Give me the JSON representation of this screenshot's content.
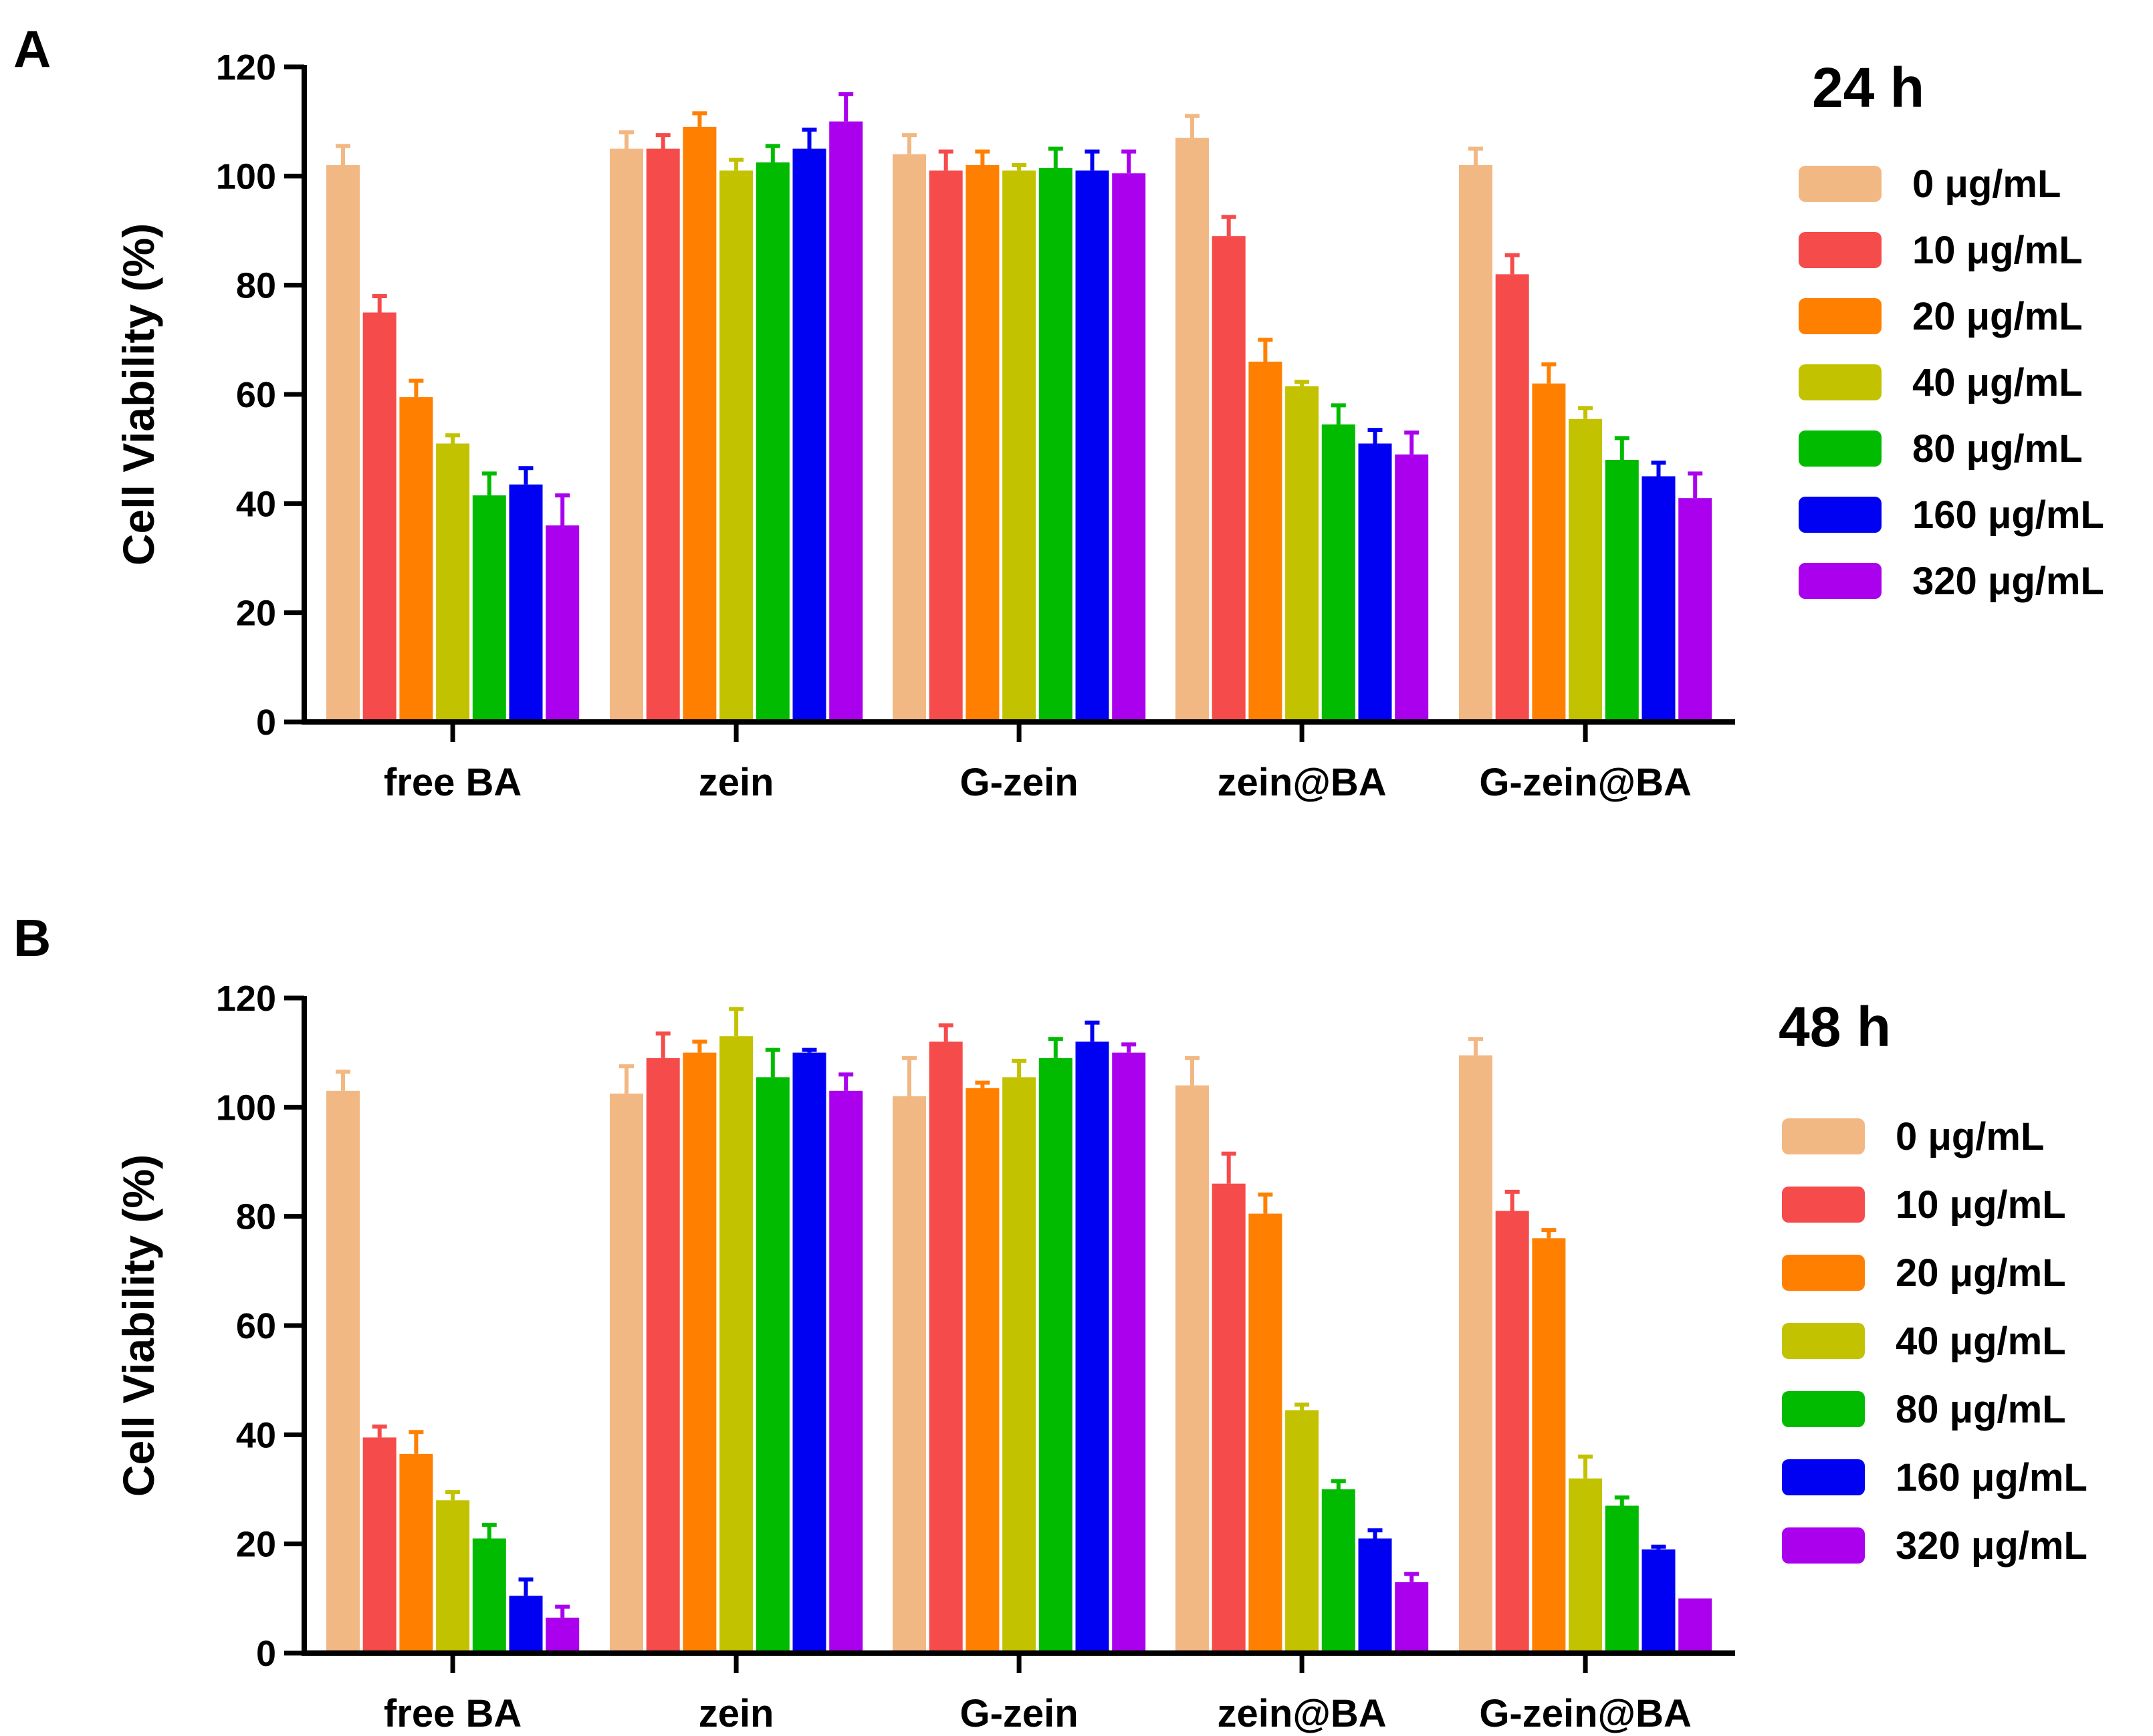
{
  "chart_data": [
    {
      "type": "bar",
      "panel_label": "A",
      "title": "24 h",
      "xlabel": "",
      "ylabel": "Cell Viability (%)",
      "ylim": [
        0,
        120
      ],
      "yticks": [
        "0",
        "20",
        "40",
        "60",
        "80",
        "100",
        "120"
      ],
      "categories": [
        "free BA",
        "zein",
        "G-zein",
        "zein@BA",
        "G-zein@BA"
      ],
      "legend_position": "right",
      "series": [
        {
          "name": "0 μg/mL",
          "color": "#F2B883",
          "values": [
            102,
            105,
            104,
            107,
            102
          ],
          "errors": [
            3.5,
            3,
            3.5,
            4,
            3
          ]
        },
        {
          "name": "10 μg/mL",
          "color": "#F54B4B",
          "values": [
            75,
            105,
            101,
            89,
            82
          ],
          "errors": [
            3,
            2.5,
            3.5,
            3.5,
            3.5
          ]
        },
        {
          "name": "20 μg/mL",
          "color": "#FF8000",
          "values": [
            59.5,
            109,
            102,
            66,
            62
          ],
          "errors": [
            3,
            2.5,
            2.5,
            4,
            3.5
          ]
        },
        {
          "name": "40 μg/mL",
          "color": "#C2C200",
          "values": [
            51,
            101,
            101,
            61.5,
            55.5
          ],
          "errors": [
            1.5,
            2,
            1,
            0.8,
            2
          ]
        },
        {
          "name": "80 μg/mL",
          "color": "#00BB00",
          "values": [
            41.5,
            102.5,
            101.5,
            54.5,
            48
          ],
          "errors": [
            4,
            3,
            3.5,
            3.5,
            4
          ]
        },
        {
          "name": "160 μg/mL",
          "color": "#0000F2",
          "values": [
            43.5,
            105,
            101,
            51,
            45
          ],
          "errors": [
            3,
            3.5,
            3.5,
            2.5,
            2.5
          ]
        },
        {
          "name": "320 μg/mL",
          "color": "#AA00EE",
          "values": [
            36,
            110,
            100.5,
            49,
            41
          ],
          "errors": [
            5.5,
            5,
            4,
            4,
            4.5
          ]
        }
      ]
    },
    {
      "type": "bar",
      "panel_label": "B",
      "title": "48 h",
      "xlabel": "",
      "ylabel": "Cell Viability (%)",
      "ylim": [
        0,
        120
      ],
      "yticks": [
        "0",
        "20",
        "40",
        "60",
        "80",
        "100",
        "120"
      ],
      "categories": [
        "free BA",
        "zein",
        "G-zein",
        "zein@BA",
        "G-zein@BA"
      ],
      "legend_position": "right",
      "series": [
        {
          "name": "0 μg/mL",
          "color": "#F2B883",
          "values": [
            103,
            102.5,
            102,
            104,
            109.5
          ],
          "errors": [
            3.5,
            5,
            7,
            5,
            3
          ]
        },
        {
          "name": "10 μg/mL",
          "color": "#F54B4B",
          "values": [
            39.5,
            109,
            112,
            86,
            81
          ],
          "errors": [
            2,
            4.5,
            3,
            5.5,
            3.5
          ]
        },
        {
          "name": "20 μg/mL",
          "color": "#FF8000",
          "values": [
            36.5,
            110,
            103.5,
            80.5,
            76
          ],
          "errors": [
            4,
            2,
            1,
            3.5,
            1.5
          ]
        },
        {
          "name": "40 μg/mL",
          "color": "#C2C200",
          "values": [
            28,
            113,
            105.5,
            44.5,
            32
          ],
          "errors": [
            1.5,
            5,
            3,
            1,
            4
          ]
        },
        {
          "name": "80 μg/mL",
          "color": "#00BB00",
          "values": [
            21,
            105.5,
            109,
            30,
            27
          ],
          "errors": [
            2.5,
            5,
            3.5,
            1.5,
            1.5
          ]
        },
        {
          "name": "160 μg/mL",
          "color": "#0000F2",
          "values": [
            10.5,
            110,
            112,
            21,
            19
          ],
          "errors": [
            3,
            0.5,
            3.5,
            1.5,
            0.5
          ]
        },
        {
          "name": "320 μg/mL",
          "color": "#AA00EE",
          "values": [
            6.5,
            103,
            110,
            13,
            10
          ],
          "errors": [
            2,
            3,
            1.5,
            1.5,
            0
          ]
        }
      ]
    }
  ]
}
